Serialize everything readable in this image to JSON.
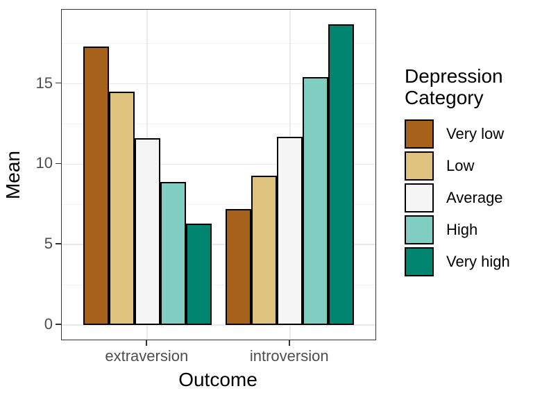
{
  "figure": {
    "background": "#ffffff"
  },
  "chart_data": {
    "type": "bar",
    "title": "",
    "xlabel": "Outcome",
    "ylabel": "Mean",
    "categories": [
      "extraversion",
      "introversion"
    ],
    "series": [
      {
        "name": "Very low",
        "color": "#a6611a",
        "values": [
          17.3,
          7.2
        ]
      },
      {
        "name": "Low",
        "color": "#dfc27d",
        "values": [
          14.5,
          9.3
        ]
      },
      {
        "name": "Average",
        "color": "#f5f5f5",
        "values": [
          11.6,
          11.7
        ]
      },
      {
        "name": "High",
        "color": "#80cdc1",
        "values": [
          8.9,
          15.4
        ]
      },
      {
        "name": "Very high",
        "color": "#018571",
        "values": [
          6.3,
          18.7
        ]
      }
    ],
    "y_ticks": [
      0,
      5,
      10,
      15
    ],
    "y_minor_ticks": [
      2.5,
      7.5,
      12.5,
      17.5
    ],
    "ylim": [
      -0.9,
      19.6
    ],
    "grid": true,
    "legend": {
      "title": "Depression Category",
      "position": "right"
    },
    "style": {
      "bar_border": "#000000",
      "panel_border": "#333333",
      "grid_major": "#e9e9e9",
      "grid_minor": "#f2f2f2",
      "tick_text": "#4d4d4d",
      "axis_title_text": "#000000",
      "panel_bg": "#ffffff"
    }
  }
}
